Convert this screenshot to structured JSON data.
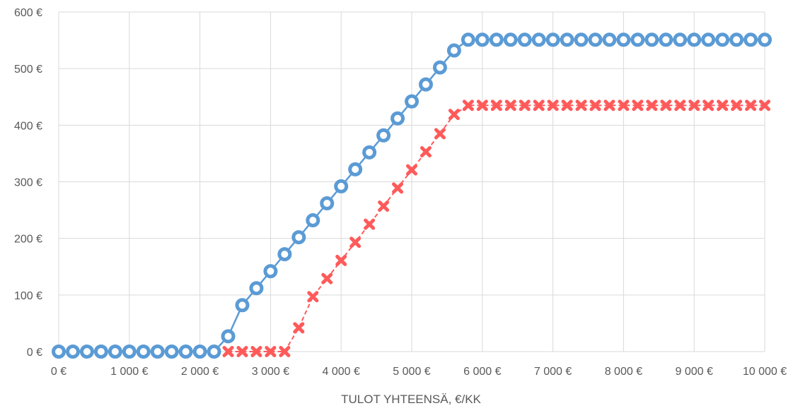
{
  "chart_data": {
    "type": "line",
    "title": "",
    "xlabel": "TULOT YHTEENSÄ, €/KK",
    "ylabel": "",
    "xlim": [
      0,
      10000
    ],
    "ylim": [
      0,
      600
    ],
    "grid": true,
    "legend": "none",
    "x_ticks": [
      0,
      1000,
      2000,
      3000,
      4000,
      5000,
      6000,
      7000,
      8000,
      9000,
      10000
    ],
    "x_tick_labels": [
      "0 €",
      "1 000 €",
      "2 000 €",
      "3 000 €",
      "4 000 €",
      "5 000 €",
      "6 000 €",
      "7 000 €",
      "8 000 €",
      "9 000 €",
      "10 000 €"
    ],
    "y_ticks": [
      0,
      100,
      200,
      300,
      400,
      500,
      600
    ],
    "y_tick_labels": [
      "0 €",
      "100 €",
      "200 €",
      "300 €",
      "400 €",
      "500 €",
      "600 €"
    ],
    "x": [
      0,
      200,
      400,
      600,
      800,
      1000,
      1200,
      1400,
      1600,
      1800,
      2000,
      2200,
      2400,
      2600,
      2800,
      3000,
      3200,
      3400,
      3600,
      3800,
      4000,
      4200,
      4400,
      4600,
      4800,
      5000,
      5200,
      5400,
      5600,
      5800,
      6000,
      6200,
      6400,
      6600,
      6800,
      7000,
      7200,
      7400,
      7600,
      7800,
      8000,
      8200,
      8400,
      8600,
      8800,
      9000,
      9200,
      9400,
      9600,
      9800,
      10000
    ],
    "series": [
      {
        "color": "#5b9bd5",
        "marker": "circle",
        "line_style": "solid",
        "values": [
          0,
          0,
          0,
          0,
          0,
          0,
          0,
          0,
          0,
          0,
          0,
          0,
          27,
          82,
          112,
          142,
          172,
          202,
          232,
          262,
          292,
          322,
          352,
          382,
          412,
          442,
          472,
          502,
          532,
          551,
          551,
          551,
          551,
          551,
          551,
          551,
          551,
          551,
          551,
          551,
          551,
          551,
          551,
          551,
          551,
          551,
          551,
          551,
          551,
          551,
          551
        ]
      },
      {
        "color": "#ff5a5a",
        "marker": "x",
        "line_style": "dashed",
        "start_x": 2400,
        "values": [
          null,
          null,
          null,
          null,
          null,
          null,
          null,
          null,
          null,
          null,
          null,
          null,
          0,
          0,
          0,
          0,
          0,
          42,
          97,
          129,
          161,
          193,
          225,
          257,
          289,
          321,
          353,
          385,
          419,
          435,
          435,
          435,
          435,
          435,
          435,
          435,
          435,
          435,
          435,
          435,
          435,
          435,
          435,
          435,
          435,
          435,
          435,
          435,
          435,
          435,
          435
        ]
      }
    ]
  }
}
